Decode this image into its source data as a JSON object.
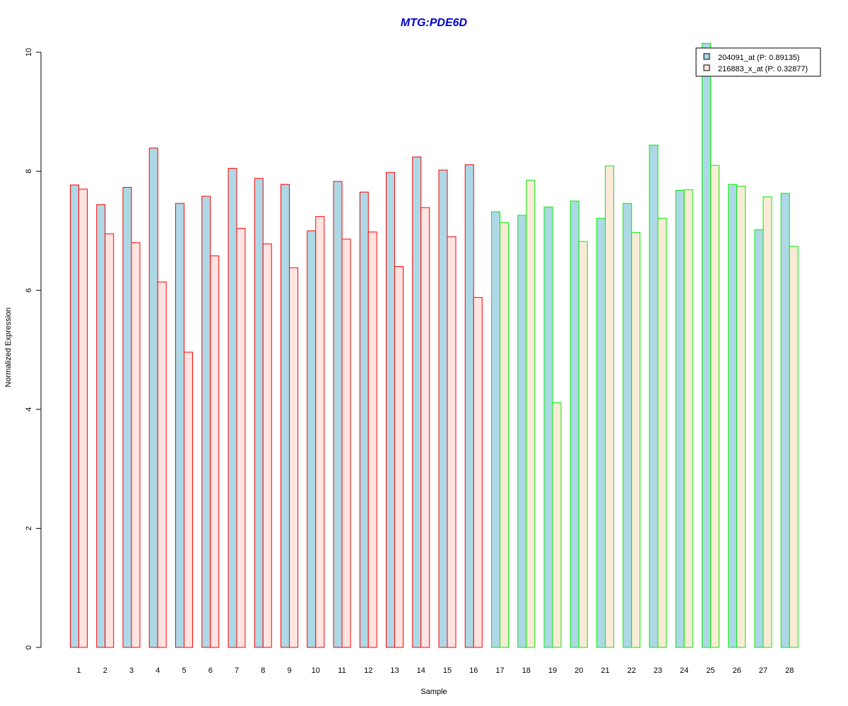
{
  "chart_data": {
    "type": "bar",
    "title": "MTG:PDE6D",
    "xlabel": "Sample",
    "ylabel": "Normalized Expression",
    "ylim": [
      0,
      10
    ],
    "yticks": [
      0,
      2,
      4,
      6,
      8,
      10
    ],
    "grid": false,
    "legend_position": "top-right",
    "categories": [
      "1",
      "2",
      "3",
      "4",
      "5",
      "6",
      "7",
      "8",
      "9",
      "10",
      "11",
      "12",
      "13",
      "14",
      "15",
      "16",
      "17",
      "18",
      "19",
      "20",
      "21",
      "22",
      "23",
      "24",
      "25",
      "26",
      "27",
      "28"
    ],
    "series": [
      {
        "name": "204091_at (P: 0.89135)",
        "fill": "#add8e6",
        "values": [
          7.77,
          7.44,
          7.73,
          8.39,
          7.46,
          7.58,
          8.05,
          7.88,
          7.78,
          7.0,
          7.83,
          7.65,
          7.98,
          8.24,
          8.02,
          8.11,
          7.32,
          7.26,
          7.4,
          7.5,
          7.21,
          7.46,
          8.44,
          7.68,
          10.15,
          7.78,
          7.02,
          7.63
        ]
      },
      {
        "name": "216883_x_at (P: 0.32877)",
        "fill_group1": "#ffe4e1",
        "fill_group2": "#faebd7",
        "values": [
          7.7,
          6.95,
          6.8,
          6.14,
          4.96,
          6.58,
          7.04,
          6.78,
          6.38,
          7.24,
          6.86,
          6.98,
          6.4,
          7.39,
          6.9,
          5.88,
          7.14,
          7.85,
          4.11,
          6.82,
          8.09,
          6.97,
          7.21,
          7.69,
          8.1,
          7.75,
          7.57,
          6.74
        ]
      }
    ],
    "group_border_colors": [
      "#ff0000",
      "#00ee00"
    ],
    "group_of_sample": [
      0,
      0,
      0,
      0,
      0,
      0,
      0,
      0,
      0,
      0,
      0,
      0,
      0,
      0,
      0,
      0,
      1,
      1,
      1,
      1,
      1,
      1,
      1,
      1,
      1,
      1,
      1,
      1
    ],
    "title_color": "#0000cd"
  }
}
